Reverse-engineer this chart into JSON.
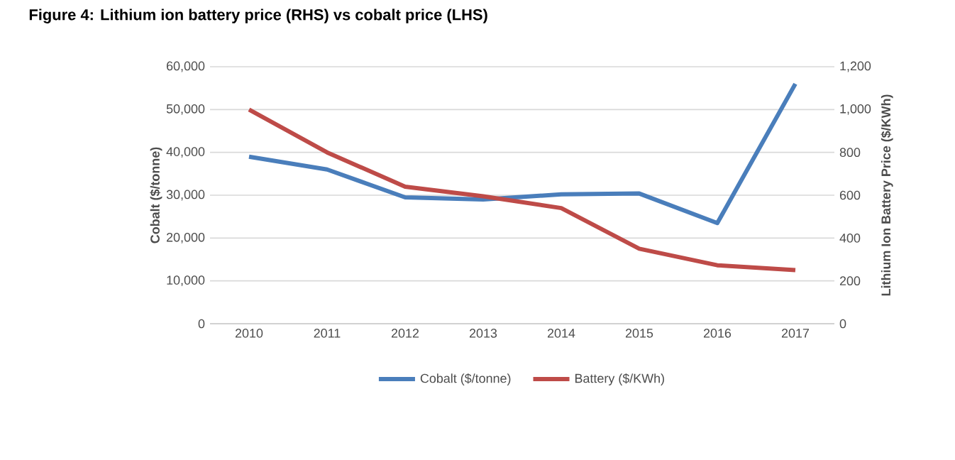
{
  "chart_data": {
    "type": "line",
    "title": "Figure 4: Lithium ion battery price (RHS) vs cobalt price (LHS)",
    "categories": [
      "2010",
      "2011",
      "2012",
      "2013",
      "2014",
      "2015",
      "2016",
      "2017"
    ],
    "ylabel": "Cobalt ($/tonne)",
    "y2label": "Lithium Ion Battery Price ($/KWh)",
    "ylim": [
      0,
      60000
    ],
    "yticks": [
      {
        "value": 0,
        "label": "0"
      },
      {
        "value": 10000,
        "label": "10,000"
      },
      {
        "value": 20000,
        "label": "20,000"
      },
      {
        "value": 30000,
        "label": "30,000"
      },
      {
        "value": 40000,
        "label": "40,000"
      },
      {
        "value": 50000,
        "label": "50,000"
      },
      {
        "value": 60000,
        "label": "60,000"
      }
    ],
    "y2lim": [
      0,
      1200
    ],
    "y2ticks": [
      {
        "value": 0,
        "label": "0"
      },
      {
        "value": 200,
        "label": "200"
      },
      {
        "value": 400,
        "label": "400"
      },
      {
        "value": 600,
        "label": "600"
      },
      {
        "value": 800,
        "label": "800"
      },
      {
        "value": 1000,
        "label": "1,000"
      },
      {
        "value": 1200,
        "label": "1,200"
      }
    ],
    "grid": "y",
    "legend": "bottom",
    "marker": "none",
    "line_style": "solid",
    "series": [
      {
        "name": "Cobalt ($/tonne)",
        "color": "#4a7ebb",
        "values": [
          39000,
          36000,
          29500,
          29000,
          30200,
          30400,
          23500,
          56000
        ]
      },
      {
        "name": "Battery ($/KWh)",
        "color": "#be4b48",
        "axis": "y2",
        "values": [
          1000,
          800,
          640,
          595,
          540,
          350,
          273,
          250
        ]
      }
    ]
  }
}
